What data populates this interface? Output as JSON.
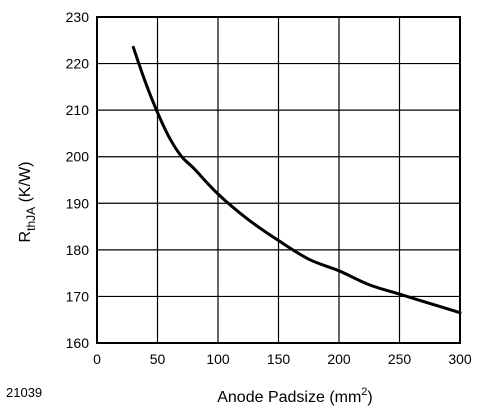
{
  "chart_data": {
    "type": "line",
    "figure_id": "21039",
    "xlabel": {
      "main": "Anode Padsize (mm",
      "sup": "2",
      "tail": ")"
    },
    "ylabel": {
      "main": "R",
      "sub": "thJA",
      "tail": " (K/W)"
    },
    "xlim": [
      0,
      300
    ],
    "ylim": [
      160,
      230
    ],
    "xticks": [
      0,
      50,
      100,
      150,
      200,
      250,
      300
    ],
    "yticks": [
      160,
      170,
      180,
      190,
      200,
      210,
      220,
      230
    ],
    "grid": true,
    "series": [
      {
        "x": [
          30,
          40,
          50,
          60,
          70,
          80,
          100,
          125,
          150,
          175,
          200,
          225,
          250,
          275,
          300
        ],
        "y": [
          223.5,
          216,
          209.5,
          204,
          200,
          197.5,
          192,
          186.5,
          182,
          178,
          175.5,
          172.5,
          170.5,
          168.5,
          166.5
        ]
      }
    ]
  }
}
